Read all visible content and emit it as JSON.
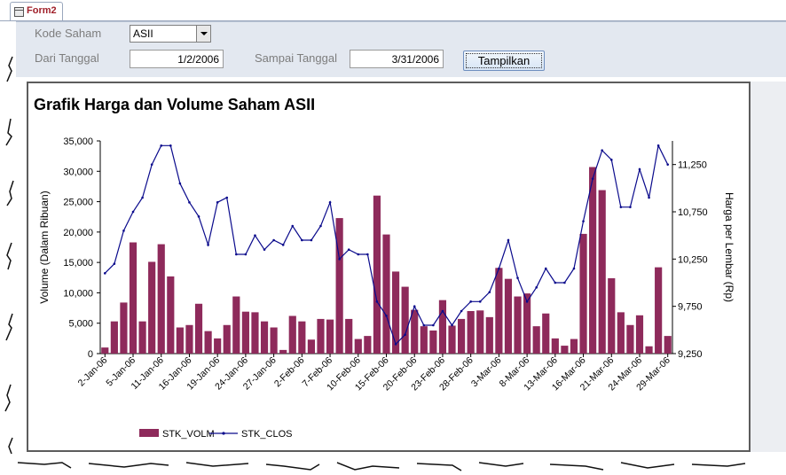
{
  "tab": {
    "label": "Form2"
  },
  "form": {
    "kode_label": "Kode Saham",
    "kode_value": "ASII",
    "dari_label": "Dari Tanggal",
    "dari_value": "1/2/2006",
    "sampai_label": "Sampai Tanggal",
    "sampai_value": "3/31/2006",
    "button_label": "Tampilkan"
  },
  "chart_title": "Grafik Harga dan Volume Saham ASII",
  "colors": {
    "bar": "#8e2a5b",
    "line": "#0a0a8c",
    "form_bg": "#e3e8f0",
    "tab_text": "#a0202a"
  },
  "chart_data": {
    "type": "bar+line",
    "title": "Grafik Harga dan Volume Saham ASII",
    "ylabel": "Volume (Dalam Ribuan)",
    "y2label": "Harga per Lembar (Rp)",
    "ylim": [
      0,
      35000
    ],
    "y2lim": [
      9250,
      11500
    ],
    "yticks": [
      "0",
      "5,000",
      "10,000",
      "15,000",
      "20,000",
      "25,000",
      "30,000",
      "35,000"
    ],
    "y2ticks": [
      "9,250",
      "9,750",
      "10,250",
      "10,750",
      "11,250"
    ],
    "xticklabels": [
      "2-Jan-06",
      "5-Jan-06",
      "11-Jan-06",
      "16-Jan-06",
      "19-Jan-06",
      "24-Jan-06",
      "27-Jan-06",
      "2-Feb-06",
      "7-Feb-06",
      "10-Feb-06",
      "15-Feb-06",
      "20-Feb-06",
      "23-Feb-06",
      "28-Feb-06",
      "3-Mar-06",
      "8-Mar-06",
      "13-Mar-06",
      "16-Mar-06",
      "21-Mar-06",
      "24-Mar-06",
      "29-Mar-06"
    ],
    "legend": [
      "STK_VOLM",
      "STK_CLOS"
    ],
    "legend_position": "bottom-left",
    "series": [
      {
        "name": "STK_VOLM",
        "type": "bar",
        "values": [
          1000,
          5300,
          8400,
          18300,
          5300,
          15100,
          18000,
          12700,
          4300,
          4700,
          8200,
          3700,
          2500,
          4700,
          9400,
          6900,
          6800,
          5300,
          4300,
          600,
          6200,
          5300,
          2300,
          5700,
          5600,
          22300,
          5700,
          2400,
          2900,
          26000,
          19600,
          13500,
          11000,
          7200,
          4500,
          3800,
          8800,
          4600,
          5700,
          7000,
          7100,
          6000,
          14100,
          12300,
          9400,
          9900,
          4500,
          6600,
          2500,
          1300,
          2400,
          19700,
          30700,
          26900,
          12400,
          6800,
          4700,
          6300,
          1200,
          14200,
          2900
        ]
      },
      {
        "name": "STK_CLOS",
        "type": "line",
        "values": [
          10100,
          10200,
          10550,
          10750,
          10900,
          11250,
          11450,
          11450,
          11050,
          10850,
          10700,
          10400,
          10850,
          10900,
          10300,
          10300,
          10500,
          10350,
          10450,
          10400,
          10600,
          10450,
          10450,
          10600,
          10850,
          10250,
          10350,
          10300,
          10300,
          9800,
          9650,
          9350,
          9450,
          9750,
          9550,
          9550,
          9700,
          9550,
          9700,
          9800,
          9800,
          9900,
          10150,
          10450,
          10050,
          9800,
          9950,
          10150,
          10000,
          10000,
          10150,
          10650,
          11100,
          11400,
          11300,
          10800,
          10800,
          11200,
          10900,
          11450,
          11250
        ]
      }
    ]
  }
}
